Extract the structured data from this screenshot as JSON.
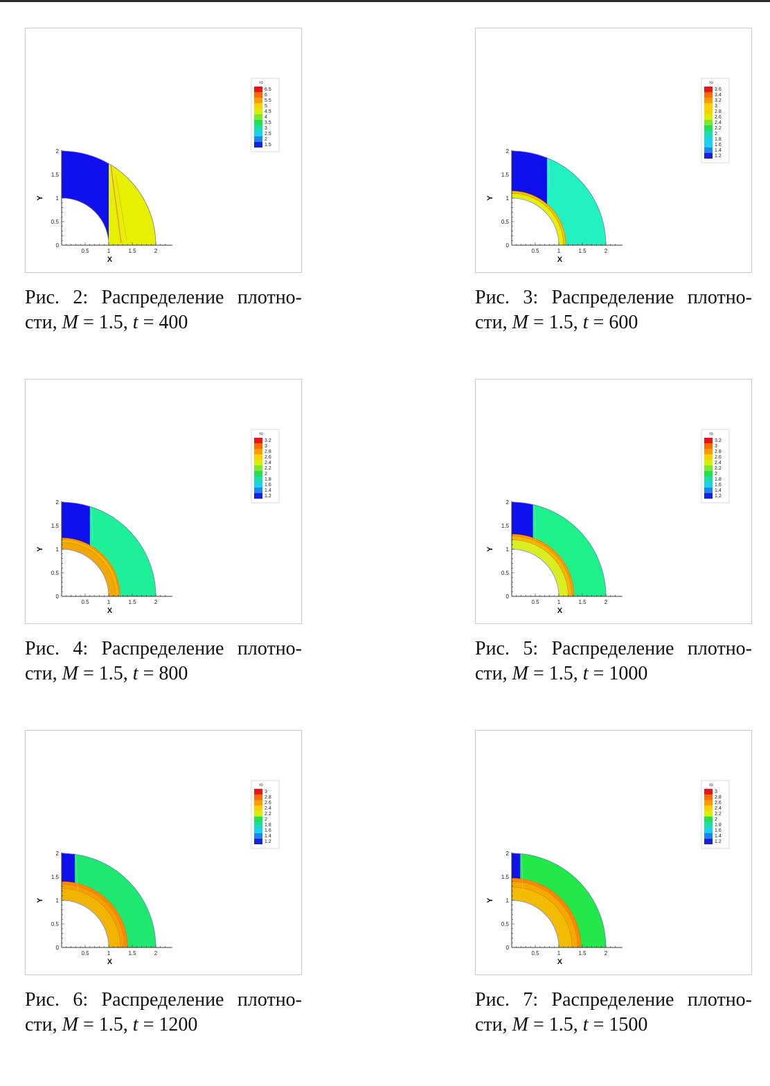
{
  "figures": [
    {
      "id": "fig2",
      "caption_label": "Рис. 2:",
      "caption_line1": "Распределение плотно-",
      "caption_line2_prefix": "сти, ",
      "var_m": "M",
      "eq_m": " = 1.5, ",
      "var_t": "t",
      "eq_t": " = 400",
      "chart_data": {
        "type": "heatmap",
        "xlabel": "X",
        "ylabel": "Y",
        "xticks": [
          "0.5",
          "1",
          "1.5",
          "2"
        ],
        "yticks": [
          "0",
          "0.5",
          "1",
          "1.5",
          "2"
        ],
        "xlim": [
          0,
          2
        ],
        "ylim": [
          0,
          2
        ],
        "legend_title": "ro",
        "legend_levels": [
          "6.5",
          "6",
          "5.5",
          "5",
          "4.5",
          "4",
          "3.5",
          "3",
          "2.5",
          "2",
          "1.5"
        ],
        "front_x": 1.0,
        "fill": "#1010ee",
        "post_fill": "#e6f000",
        "bands": [],
        "streak": true
      }
    },
    {
      "id": "fig3",
      "caption_label": "Рис. 3:",
      "caption_line1": "Распределение плотно-",
      "caption_line2_prefix": "сти, ",
      "var_m": "M",
      "eq_m": " = 1.5, ",
      "var_t": "t",
      "eq_t": " = 600",
      "chart_data": {
        "type": "heatmap",
        "xlabel": "X",
        "ylabel": "Y",
        "xticks": [
          "0.5",
          "1",
          "1.5",
          "2"
        ],
        "yticks": [
          "0",
          "0.5",
          "1",
          "1.5",
          "2"
        ],
        "xlim": [
          0,
          2
        ],
        "ylim": [
          0,
          2
        ],
        "legend_title": "ro",
        "legend_levels": [
          "3.6",
          "3.4",
          "3.2",
          "3",
          "2.8",
          "2.6",
          "2.4",
          "2.2",
          "2",
          "1.8",
          "1.6",
          "1.4",
          "1.2"
        ],
        "front_x": 0.75,
        "fill": "#1010ee",
        "post_fill": "#22f2c2",
        "bands": [
          {
            "r": 1.15,
            "color": "#f2c000"
          },
          {
            "r": 1.1,
            "color": "#e6f000"
          }
        ],
        "streak": false
      }
    },
    {
      "id": "fig4",
      "caption_label": "Рис. 4:",
      "caption_line1": "Распределение плотно-",
      "caption_line2_prefix": "сти, ",
      "var_m": "M",
      "eq_m": " = 1.5, ",
      "var_t": "t",
      "eq_t": " = 800",
      "chart_data": {
        "type": "heatmap",
        "xlabel": "X",
        "ylabel": "Y",
        "xticks": [
          "0.5",
          "1",
          "1.5",
          "2"
        ],
        "yticks": [
          "0",
          "0.5",
          "1",
          "1.5",
          "2"
        ],
        "xlim": [
          0,
          2
        ],
        "ylim": [
          0,
          2
        ],
        "legend_title": "ro",
        "legend_levels": [
          "3.2",
          "3",
          "2.8",
          "2.6",
          "2.4",
          "2.2",
          "2",
          "1.8",
          "1.6",
          "1.4",
          "1.2"
        ],
        "front_x": 0.6,
        "fill": "#1010ee",
        "post_fill": "#1ef09a",
        "bands": [
          {
            "r": 1.24,
            "color": "#ff9a00"
          },
          {
            "r": 1.21,
            "color": "#f7b800"
          },
          {
            "r": 1.15,
            "color": "#f2a800"
          }
        ],
        "streak": false
      }
    },
    {
      "id": "fig5",
      "caption_label": "Рис. 5:",
      "caption_line1": "Распределение плотно-",
      "caption_line2_prefix": "сти, ",
      "var_m": "M",
      "eq_m": " = 1.5, ",
      "var_t": "t",
      "eq_t": " = 1000",
      "chart_data": {
        "type": "heatmap",
        "xlabel": "X",
        "ylabel": "Y",
        "xticks": [
          "0.5",
          "1",
          "1.5",
          "2"
        ],
        "yticks": [
          "0",
          "0.5",
          "1",
          "1.5",
          "2"
        ],
        "xlim": [
          0,
          2
        ],
        "ylim": [
          0,
          2
        ],
        "legend_title": "ro",
        "legend_levels": [
          "3.2",
          "3",
          "2.8",
          "2.6",
          "2.4",
          "2.2",
          "2",
          "1.8",
          "1.6",
          "1.4",
          "1.2"
        ],
        "front_x": 0.45,
        "fill": "#1010ee",
        "post_fill": "#1ef08a",
        "bands": [
          {
            "r": 1.32,
            "color": "#ff9a00"
          },
          {
            "r": 1.28,
            "color": "#f7b400"
          },
          {
            "r": 1.2,
            "color": "#d8ee20"
          }
        ],
        "streak": false
      }
    },
    {
      "id": "fig6",
      "caption_label": "Рис. 6:",
      "caption_line1": "Распределение плотно-",
      "caption_line2_prefix": "сти, ",
      "var_m": "M",
      "eq_m": " = 1.5, ",
      "var_t": "t",
      "eq_t": " = 1200",
      "chart_data": {
        "type": "heatmap",
        "xlabel": "X",
        "ylabel": "Y",
        "xticks": [
          "0.5",
          "1",
          "1.5",
          "2"
        ],
        "yticks": [
          "0",
          "0.5",
          "1",
          "1.5",
          "2"
        ],
        "xlim": [
          0,
          2
        ],
        "ylim": [
          0,
          2
        ],
        "legend_title": "ro",
        "legend_levels": [
          "3",
          "2.8",
          "2.6",
          "2.4",
          "2.2",
          "2",
          "1.8",
          "1.6",
          "1.4",
          "1.2"
        ],
        "front_x": 0.28,
        "fill": "#1010ee",
        "post_fill": "#1ee870",
        "bands": [
          {
            "r": 1.4,
            "color": "#ff8800"
          },
          {
            "r": 1.34,
            "color": "#f5a000"
          },
          {
            "r": 1.25,
            "color": "#f2b400"
          }
        ],
        "streak": false
      }
    },
    {
      "id": "fig7",
      "caption_label": "Рис. 7:",
      "caption_line1": "Распределение плотно-",
      "caption_line2_prefix": "сти, ",
      "var_m": "M",
      "eq_m": " = 1.5, ",
      "var_t": "t",
      "eq_t": " = 1500",
      "chart_data": {
        "type": "heatmap",
        "xlabel": "X",
        "ylabel": "Y",
        "xticks": [
          "0.5",
          "1",
          "1.5",
          "2"
        ],
        "yticks": [
          "0",
          "0.5",
          "1",
          "1.5",
          "2"
        ],
        "xlim": [
          0,
          2
        ],
        "ylim": [
          0,
          2
        ],
        "legend_title": "ro",
        "legend_levels": [
          "3",
          "2.8",
          "2.6",
          "2.4",
          "2.2",
          "2",
          "1.8",
          "1.6",
          "1.4",
          "1.2"
        ],
        "front_x": 0.18,
        "fill": "#1010ee",
        "post_fill": "#22e84a",
        "bands": [
          {
            "r": 1.47,
            "color": "#ff8800"
          },
          {
            "r": 1.4,
            "color": "#f5a800"
          },
          {
            "r": 1.28,
            "color": "#f2bc00"
          }
        ],
        "streak": false
      }
    }
  ]
}
